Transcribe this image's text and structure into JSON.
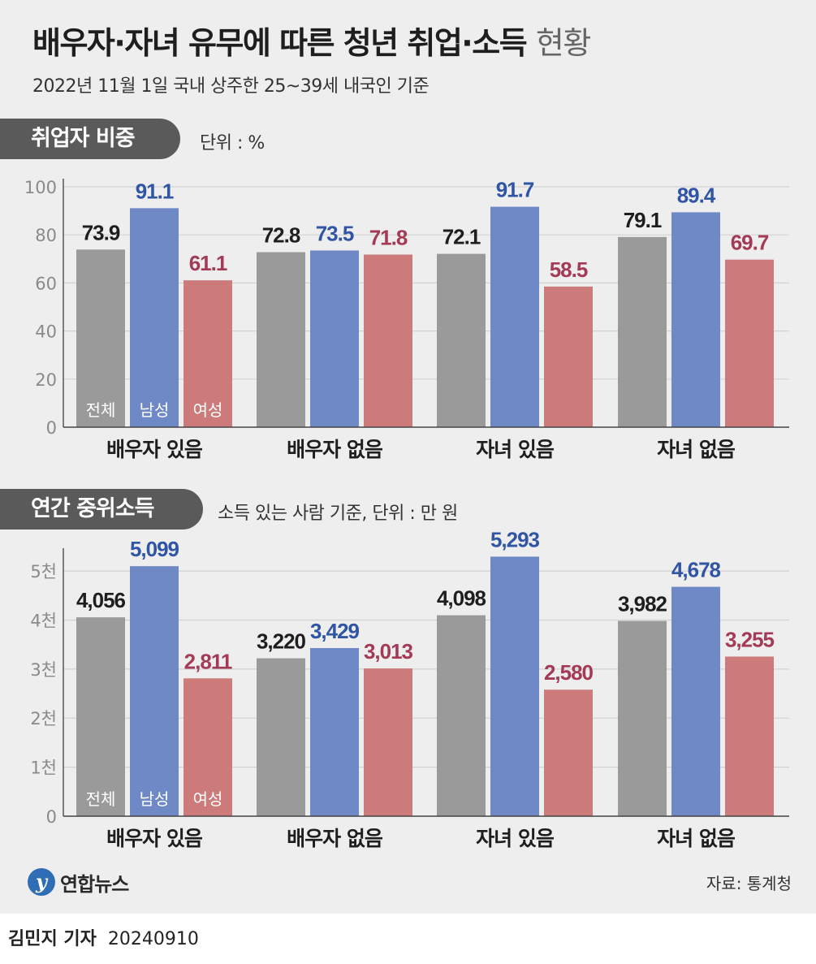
{
  "title_main": "배우자·자녀 유무에 따른 청년 취업·소득",
  "title_tail": "현황",
  "subtitle": "2022년 11월 1일 국내 상주한 25~39세 내국인 기준",
  "colors": {
    "total": "#9a9a9a",
    "male": "#6f88c6",
    "female": "#cc7a7a",
    "male_label": "#2f55a4",
    "female_label": "#a33a56",
    "total_label": "#1e1e1e"
  },
  "sections": [
    {
      "title": "취업자 비중",
      "note": "단위 : %"
    },
    {
      "title": "연간 중위소득",
      "note": "소득 있는 사람 기준, 단위 : 만 원"
    }
  ],
  "chart_data": [
    {
      "type": "bar",
      "title": "취업자 비중",
      "unit": "%",
      "categories": [
        "배우자 있음",
        "배우자 없음",
        "자녀 있음",
        "자녀 없음"
      ],
      "series": [
        {
          "name": "전체",
          "values": [
            73.9,
            72.8,
            72.1,
            79.1
          ],
          "labels": [
            "73.9",
            "72.8",
            "72.1",
            "79.1"
          ]
        },
        {
          "name": "남성",
          "values": [
            91.1,
            73.5,
            91.7,
            89.4
          ],
          "labels": [
            "91.1",
            "73.5",
            "91.7",
            "89.4"
          ]
        },
        {
          "name": "여성",
          "values": [
            61.1,
            71.8,
            58.5,
            69.7
          ],
          "labels": [
            "61.1",
            "71.8",
            "58.5",
            "69.7"
          ]
        }
      ],
      "ylim": [
        0,
        100
      ],
      "yticks": [
        0,
        20,
        40,
        60,
        80,
        100
      ],
      "ytick_labels": [
        "0",
        "20",
        "40",
        "60",
        "80",
        "100"
      ],
      "grid": true,
      "legend": "inside first group bars"
    },
    {
      "type": "bar",
      "title": "연간 중위소득",
      "unit": "만 원",
      "categories": [
        "배우자 있음",
        "배우자 없음",
        "자녀 있음",
        "자녀 없음"
      ],
      "series": [
        {
          "name": "전체",
          "values": [
            4056,
            3220,
            4098,
            3982
          ],
          "labels": [
            "4,056",
            "3,220",
            "4,098",
            "3,982"
          ]
        },
        {
          "name": "남성",
          "values": [
            5099,
            3429,
            5293,
            4678
          ],
          "labels": [
            "5,099",
            "3,429",
            "5,293",
            "4,678"
          ]
        },
        {
          "name": "여성",
          "values": [
            2811,
            3013,
            2580,
            3255
          ],
          "labels": [
            "2,811",
            "3,013",
            "2,580",
            "3,255"
          ]
        }
      ],
      "ylim": [
        0,
        5300
      ],
      "yticks": [
        0,
        1000,
        2000,
        3000,
        4000,
        5000
      ],
      "ytick_labels": [
        "0",
        "1천",
        "2천",
        "3천",
        "4천",
        "5천"
      ],
      "grid": true,
      "legend": "inside first group bars"
    }
  ],
  "logo_text": "연합뉴스",
  "source": "자료: 통계청",
  "byline_name": "김민지 기자",
  "byline_date": "20240910"
}
